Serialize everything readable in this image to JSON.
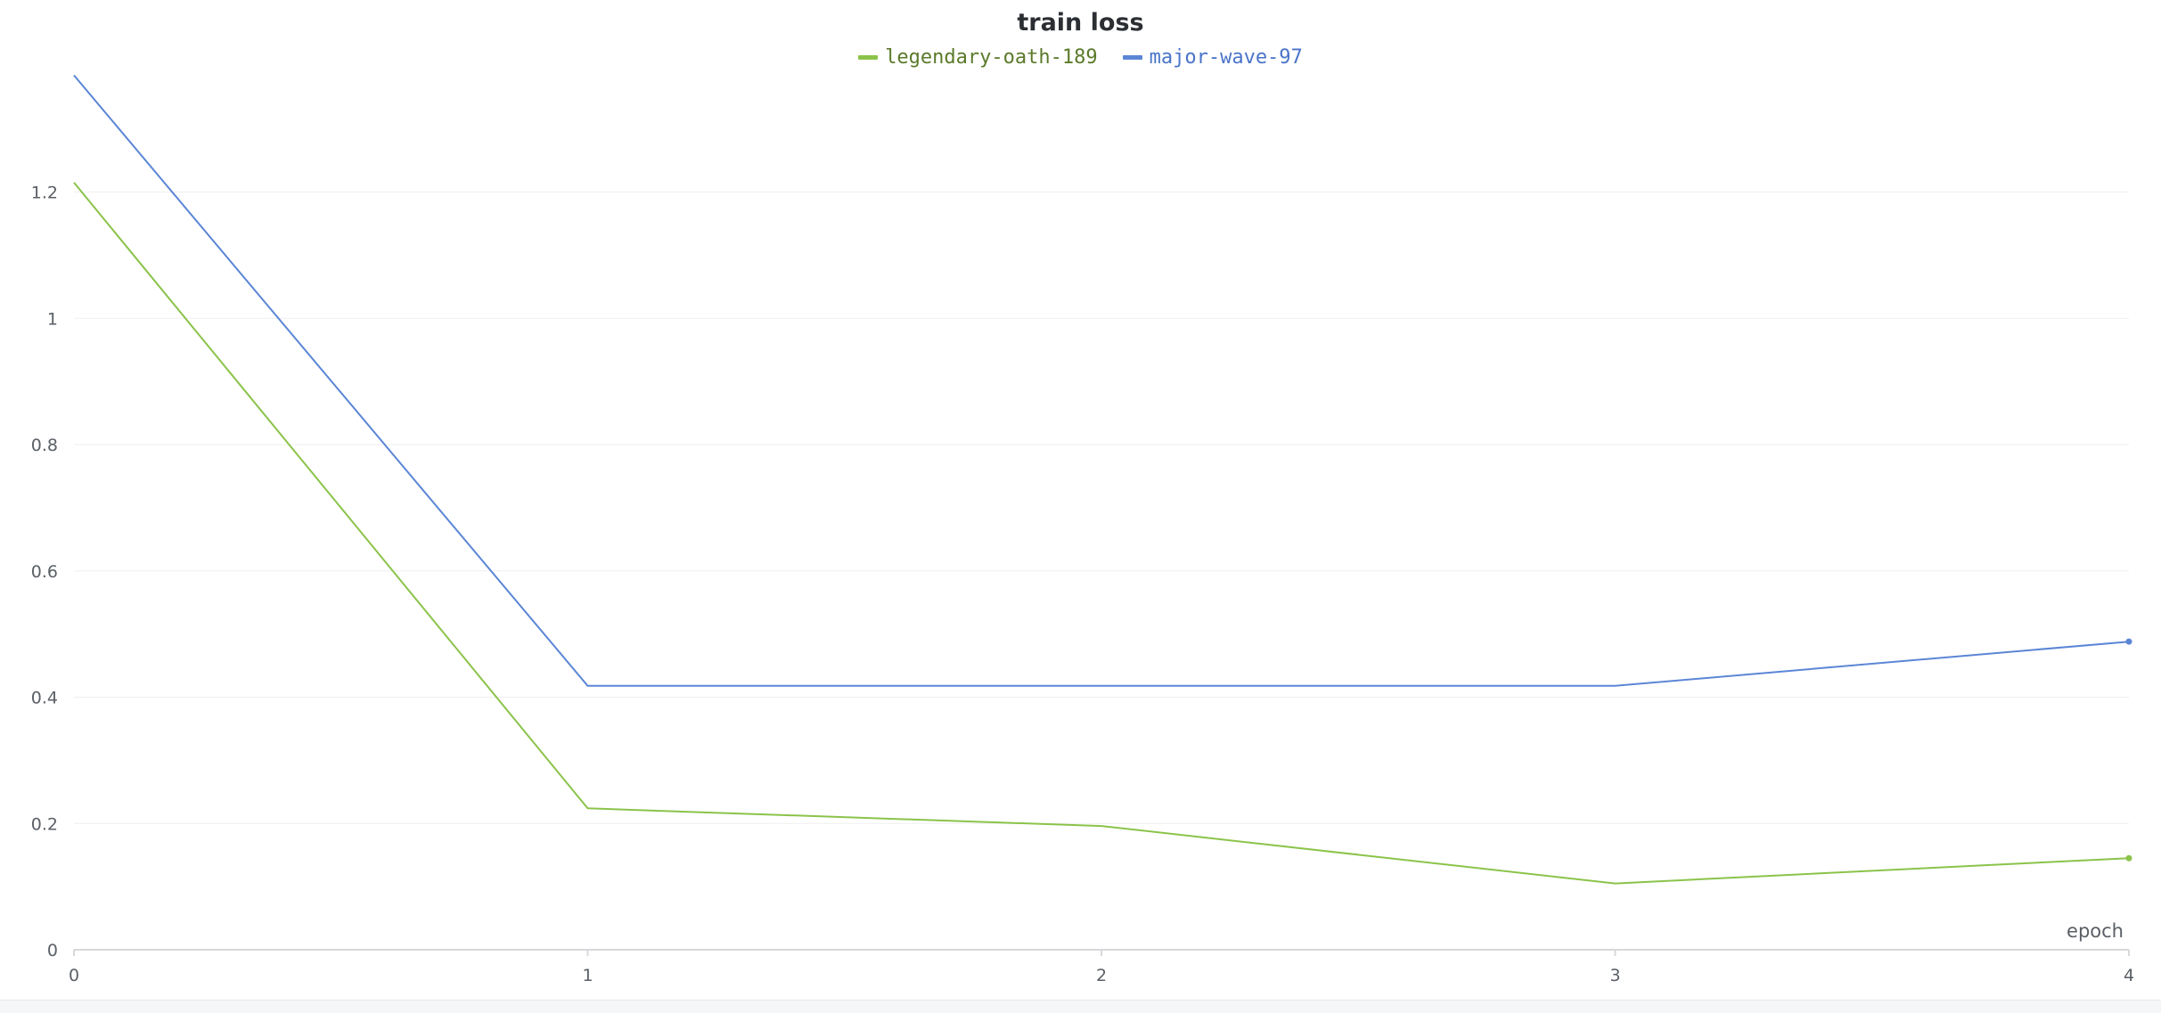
{
  "chart_data": {
    "type": "line",
    "title": "train loss",
    "xlabel": "epoch",
    "ylabel": "",
    "x": [
      0,
      1,
      2,
      3,
      4
    ],
    "xlim": [
      0,
      4
    ],
    "ylim": [
      0,
      1.38
    ],
    "x_ticks": [
      0,
      1,
      2,
      3,
      4
    ],
    "y_ticks": [
      0,
      0.2,
      0.4,
      0.6,
      0.8,
      1,
      1.2
    ],
    "grid": true,
    "legend": "top-center",
    "series": [
      {
        "name": "legendary-oath-189",
        "color": "#8bc34a",
        "values": [
          1.215,
          0.224,
          0.196,
          0.105,
          0.145
        ]
      },
      {
        "name": "major-wave-97",
        "color": "#5b86d6",
        "values": [
          1.385,
          0.418,
          0.418,
          0.418,
          0.488
        ]
      }
    ]
  },
  "colors": {
    "legend_text_0": "#5b7a2a",
    "legend_text_1": "#4a74c9",
    "grid": "#efefef",
    "axis": "#d6d8db"
  }
}
